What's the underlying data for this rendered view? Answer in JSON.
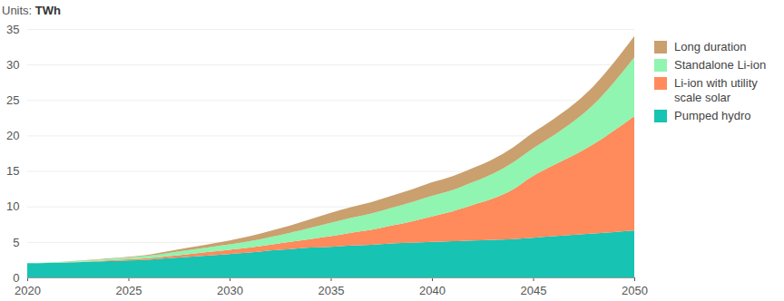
{
  "chart_data": {
    "type": "area",
    "subtitle": "Units: TWh",
    "stacked": true,
    "grid": true,
    "legend": "right",
    "x": [
      2020,
      2021,
      2022,
      2023,
      2024,
      2025,
      2026,
      2027,
      2028,
      2029,
      2030,
      2031,
      2032,
      2033,
      2034,
      2035,
      2036,
      2037,
      2038,
      2039,
      2040,
      2041,
      2042,
      2043,
      2044,
      2045,
      2046,
      2047,
      2048,
      2049,
      2050
    ],
    "xlim": [
      2020,
      2050
    ],
    "xticks": [
      2020,
      2025,
      2030,
      2035,
      2040,
      2045,
      2050
    ],
    "ylim": [
      0,
      35
    ],
    "yticks": [
      0,
      5,
      10,
      15,
      20,
      25,
      30,
      35
    ],
    "series": [
      {
        "name": "Pumped hydro",
        "color": "#17c3b2",
        "values": [
          2.0,
          2.05,
          2.1,
          2.2,
          2.3,
          2.4,
          2.5,
          2.7,
          2.9,
          3.1,
          3.3,
          3.5,
          3.8,
          4.0,
          4.2,
          4.3,
          4.5,
          4.6,
          4.8,
          4.9,
          5.0,
          5.1,
          5.2,
          5.3,
          5.4,
          5.6,
          5.8,
          6.0,
          6.2,
          6.4,
          6.6
        ]
      },
      {
        "name": "Li-ion with utility scale solar",
        "color": "#ff8a5c",
        "values": [
          0,
          0,
          0.05,
          0.05,
          0.1,
          0.15,
          0.2,
          0.3,
          0.4,
          0.5,
          0.6,
          0.7,
          0.8,
          1.0,
          1.2,
          1.5,
          1.8,
          2.1,
          2.5,
          3.0,
          3.6,
          4.2,
          5.0,
          5.8,
          7.0,
          8.7,
          10.0,
          11.2,
          12.6,
          14.3,
          16.1
        ]
      },
      {
        "name": "Standalone Li-ion",
        "color": "#8ff5b0",
        "values": [
          0,
          0.05,
          0.1,
          0.15,
          0.2,
          0.25,
          0.35,
          0.45,
          0.55,
          0.65,
          0.75,
          0.9,
          1.1,
          1.3,
          1.6,
          1.9,
          2.1,
          2.3,
          2.5,
          2.7,
          2.9,
          3.0,
          3.2,
          3.5,
          3.8,
          3.9,
          4.2,
          4.8,
          5.6,
          6.8,
          8.3
        ]
      },
      {
        "name": "Long duration",
        "color": "#c9a06e",
        "values": [
          0,
          0,
          0.02,
          0.05,
          0.08,
          0.1,
          0.15,
          0.25,
          0.35,
          0.45,
          0.55,
          0.7,
          0.85,
          1.0,
          1.2,
          1.4,
          1.5,
          1.6,
          1.7,
          1.8,
          1.9,
          1.95,
          2.0,
          2.05,
          2.1,
          2.2,
          2.3,
          2.4,
          2.6,
          2.8,
          3.0
        ]
      }
    ]
  }
}
